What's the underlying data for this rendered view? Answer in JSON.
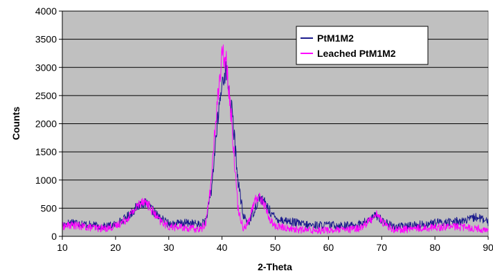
{
  "chart_data": {
    "type": "line",
    "title": "",
    "xlabel": "2-Theta",
    "ylabel": "Counts",
    "xlim": [
      10,
      90
    ],
    "ylim": [
      0,
      4000
    ],
    "x_ticks": [
      10,
      20,
      30,
      40,
      50,
      60,
      70,
      80,
      90
    ],
    "y_ticks": [
      0,
      500,
      1000,
      1500,
      2000,
      2500,
      3000,
      3500,
      4000
    ],
    "grid": "horizontal",
    "plot_background": "#c0c0c0",
    "legend_position": "top-right",
    "series": [
      {
        "name": "PtM1M2",
        "color": "#1a1a8c",
        "x": [
          10,
          12,
          14,
          16,
          18,
          20,
          22,
          24,
          25,
          26,
          28,
          30,
          32,
          34,
          36,
          37,
          38,
          39,
          40,
          40.5,
          41,
          42,
          43,
          44,
          45,
          46,
          47,
          48,
          49,
          50,
          52,
          54,
          56,
          58,
          60,
          62,
          64,
          66,
          68,
          69,
          70,
          72,
          74,
          76,
          78,
          80,
          82,
          84,
          86,
          88,
          90
        ],
        "y": [
          200,
          260,
          220,
          190,
          170,
          210,
          330,
          520,
          600,
          560,
          350,
          220,
          230,
          240,
          200,
          300,
          800,
          1900,
          2700,
          2950,
          2850,
          2100,
          1000,
          350,
          250,
          450,
          700,
          600,
          450,
          320,
          280,
          240,
          200,
          200,
          200,
          200,
          190,
          220,
          300,
          380,
          290,
          180,
          170,
          200,
          210,
          240,
          250,
          270,
          280,
          350,
          240
        ]
      },
      {
        "name": "Leached PtM1M2",
        "color": "#ff00ff",
        "x": [
          10,
          12,
          14,
          16,
          18,
          20,
          22,
          24,
          25,
          26,
          28,
          30,
          32,
          34,
          36,
          37,
          38,
          39,
          40,
          40.5,
          41,
          42,
          43,
          44,
          45,
          46,
          47,
          48,
          49,
          50,
          52,
          54,
          56,
          58,
          60,
          62,
          64,
          66,
          68,
          69,
          70,
          72,
          74,
          76,
          78,
          80,
          82,
          84,
          86,
          88,
          90
        ],
        "y": [
          180,
          200,
          170,
          150,
          140,
          180,
          300,
          520,
          650,
          580,
          300,
          170,
          160,
          140,
          120,
          250,
          1000,
          2300,
          3150,
          3250,
          3000,
          1800,
          500,
          150,
          250,
          600,
          720,
          550,
          300,
          180,
          150,
          120,
          110,
          110,
          110,
          110,
          120,
          150,
          300,
          420,
          260,
          130,
          120,
          140,
          150,
          160,
          170,
          170,
          160,
          140,
          100
        ]
      }
    ]
  }
}
